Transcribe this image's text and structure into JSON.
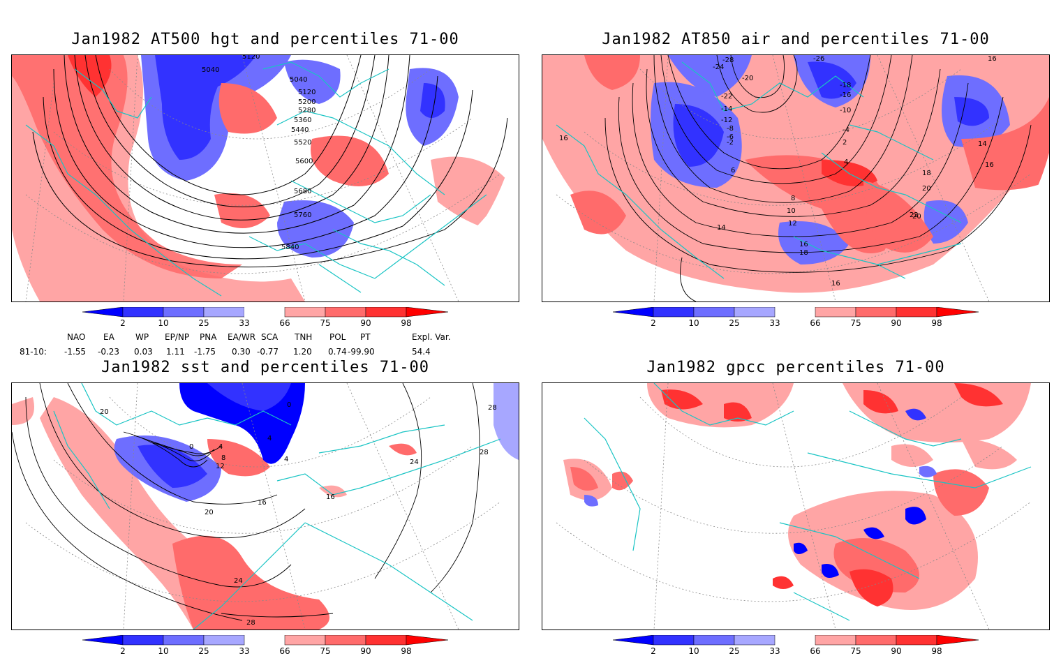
{
  "panels": [
    {
      "id": "p1",
      "title": "Jan1982 AT500 hgt and percentiles 71-00",
      "contour_labels": [
        "5120",
        "5040",
        "5040",
        "5120",
        "5200",
        "5280",
        "5360",
        "5440",
        "5520",
        "5600",
        "5680",
        "5760",
        "5840"
      ]
    },
    {
      "id": "p2",
      "title": "Jan1982 AT850 air and percentiles 71-00",
      "contour_labels": [
        "-28",
        "-26",
        "-24",
        "-20",
        "-22",
        "-18",
        "-16",
        "-14",
        "-12",
        "-10",
        "-8",
        "-6",
        "-4",
        "-2",
        "2",
        "4",
        "6",
        "8",
        "10",
        "12",
        "14",
        "16",
        "18",
        "20",
        "22",
        "16",
        "16",
        "14",
        "18",
        "16",
        "20",
        "16"
      ]
    },
    {
      "id": "p3",
      "title": "Jan1982 sst and percentiles 71-00",
      "contour_labels": [
        "20",
        "0",
        "4",
        "8",
        "12",
        "16",
        "20",
        "24",
        "28",
        "24",
        "28",
        "16",
        "4",
        "4",
        "0",
        "28"
      ]
    },
    {
      "id": "p4",
      "title": "Jan1982 gpcc percentiles 71-00",
      "contour_labels": []
    }
  ],
  "colorbar": {
    "ticks": [
      "2",
      "10",
      "25",
      "33",
      "66",
      "75",
      "90",
      "98"
    ],
    "colors": {
      "b1": "#0000ff",
      "b2": "#3232ff",
      "b3": "#6e6eff",
      "b4": "#a7a7ff",
      "r1": "#ffa5a5",
      "r2": "#ff6b6b",
      "r3": "#ff3232",
      "r4": "#ff0000"
    }
  },
  "indices": {
    "headers": [
      "NAO",
      "EA",
      "WP",
      "EP/NP",
      "PNA",
      "EA/WR",
      "SCA",
      "TNH",
      "POL",
      "PT",
      "Expl. Var."
    ],
    "row_label": "81-10:",
    "values": [
      "-1.55",
      "-0.23",
      "0.03",
      "1.11",
      "-1.75",
      "0.30",
      "-0.77",
      "1.20",
      "0.74",
      "-99.90",
      "54.4"
    ]
  },
  "colors": {
    "coast": "#19c4c4",
    "grid": "#888888",
    "contour": "#000000"
  }
}
